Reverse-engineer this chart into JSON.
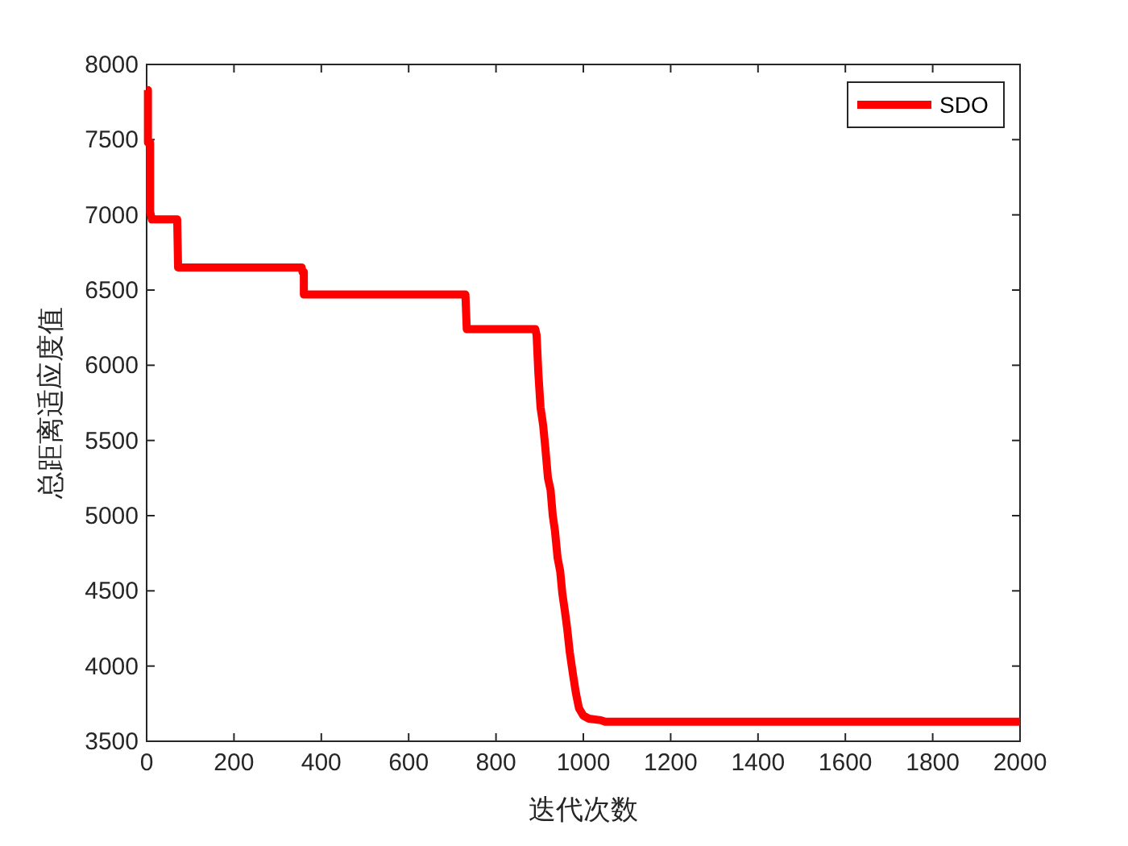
{
  "chart_data": {
    "type": "line",
    "xlabel": "迭代次数",
    "ylabel": "总距离适应度值",
    "xlim": [
      0,
      2000
    ],
    "ylim": [
      3500,
      8000
    ],
    "xticks": [
      0,
      200,
      400,
      600,
      800,
      1000,
      1200,
      1400,
      1600,
      1800,
      2000
    ],
    "yticks": [
      3500,
      4000,
      4500,
      5000,
      5500,
      6000,
      6500,
      7000,
      7500,
      8000
    ],
    "legend": "top right",
    "grid": false,
    "series": [
      {
        "name": "SDO",
        "color": "#ff0000",
        "x": [
          0,
          3,
          3,
          8,
          8,
          12,
          70,
          72,
          355,
          357,
          360,
          360,
          730,
          733,
          890,
          893,
          897,
          902,
          908,
          913,
          919,
          925,
          930,
          935,
          941,
          947,
          952,
          958,
          963,
          969,
          976,
          983,
          990,
          1000,
          1013,
          1040,
          1050,
          2000
        ],
        "values": [
          7830,
          7830,
          7480,
          7480,
          7020,
          6970,
          6970,
          6650,
          6650,
          6620,
          6620,
          6470,
          6470,
          6240,
          6240,
          6200,
          5950,
          5720,
          5600,
          5450,
          5250,
          5170,
          5000,
          4900,
          4720,
          4630,
          4480,
          4360,
          4250,
          4090,
          3950,
          3820,
          3720,
          3670,
          3650,
          3640,
          3630,
          3630
        ]
      }
    ]
  }
}
